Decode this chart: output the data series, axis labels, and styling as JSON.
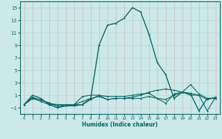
{
  "xlabel": "Humidex (Indice chaleur)",
  "ylabel": "",
  "background_color": "#cde8e8",
  "grid_color": "#b8d4d4",
  "line_color": "#006666",
  "xlim": [
    -0.5,
    23.5
  ],
  "ylim": [
    -2,
    16
  ],
  "xticks": [
    0,
    1,
    2,
    3,
    4,
    5,
    6,
    7,
    8,
    9,
    10,
    11,
    12,
    13,
    14,
    15,
    16,
    17,
    18,
    19,
    20,
    21,
    22,
    23
  ],
  "yticks": [
    -1,
    1,
    3,
    5,
    7,
    9,
    11,
    13,
    15
  ],
  "series1": [
    [
      0,
      -0.5
    ],
    [
      1,
      1.0
    ],
    [
      2,
      0.5
    ],
    [
      3,
      -0.5
    ],
    [
      4,
      -1.0
    ],
    [
      5,
      -0.7
    ],
    [
      6,
      -0.7
    ],
    [
      7,
      -0.5
    ],
    [
      8,
      0.5
    ],
    [
      9,
      9.0
    ],
    [
      10,
      12.2
    ],
    [
      11,
      12.5
    ],
    [
      12,
      13.3
    ],
    [
      13,
      15.0
    ],
    [
      14,
      14.3
    ],
    [
      15,
      10.7
    ],
    [
      16,
      6.2
    ],
    [
      17,
      4.3
    ],
    [
      18,
      0.5
    ],
    [
      19,
      1.5
    ],
    [
      20,
      1.2
    ],
    [
      21,
      -1.5
    ],
    [
      22,
      0.5
    ],
    [
      23,
      0.5
    ]
  ],
  "series2": [
    [
      0,
      -0.5
    ],
    [
      1,
      0.5
    ],
    [
      2,
      0.3
    ],
    [
      3,
      -0.3
    ],
    [
      4,
      -0.5
    ],
    [
      5,
      -0.7
    ],
    [
      6,
      -0.5
    ],
    [
      7,
      0.8
    ],
    [
      8,
      1.0
    ],
    [
      9,
      1.0
    ],
    [
      10,
      0.3
    ],
    [
      11,
      0.5
    ],
    [
      12,
      0.5
    ],
    [
      13,
      0.7
    ],
    [
      14,
      1.0
    ],
    [
      15,
      1.5
    ],
    [
      16,
      1.8
    ],
    [
      17,
      2.0
    ],
    [
      18,
      1.8
    ],
    [
      19,
      1.5
    ],
    [
      20,
      2.7
    ],
    [
      21,
      1.2
    ],
    [
      22,
      0.5
    ],
    [
      23,
      0.5
    ]
  ],
  "series3": [
    [
      0,
      -0.5
    ],
    [
      1,
      0.7
    ],
    [
      2,
      0.2
    ],
    [
      3,
      -0.2
    ],
    [
      4,
      -0.8
    ],
    [
      5,
      -0.7
    ],
    [
      6,
      -0.5
    ],
    [
      7,
      -0.5
    ],
    [
      8,
      0.3
    ],
    [
      9,
      1.0
    ],
    [
      10,
      0.8
    ],
    [
      11,
      0.8
    ],
    [
      12,
      0.8
    ],
    [
      13,
      1.0
    ],
    [
      14,
      1.2
    ],
    [
      15,
      1.3
    ],
    [
      16,
      0.5
    ],
    [
      17,
      -0.3
    ],
    [
      18,
      1.2
    ],
    [
      19,
      1.5
    ],
    [
      20,
      1.0
    ],
    [
      21,
      1.0
    ],
    [
      22,
      0.3
    ],
    [
      23,
      0.7
    ]
  ],
  "series4": [
    [
      0,
      -0.5
    ],
    [
      1,
      0.5
    ],
    [
      2,
      0.0
    ],
    [
      3,
      -0.5
    ],
    [
      4,
      -0.5
    ],
    [
      5,
      -0.5
    ],
    [
      6,
      -0.5
    ],
    [
      7,
      0.0
    ],
    [
      8,
      0.5
    ],
    [
      9,
      0.8
    ],
    [
      10,
      0.3
    ],
    [
      11,
      0.5
    ],
    [
      12,
      0.5
    ],
    [
      13,
      0.5
    ],
    [
      14,
      0.5
    ],
    [
      15,
      0.8
    ],
    [
      16,
      0.5
    ],
    [
      17,
      0.3
    ],
    [
      18,
      1.0
    ],
    [
      19,
      1.5
    ],
    [
      20,
      1.3
    ],
    [
      21,
      1.0
    ],
    [
      22,
      -1.5
    ],
    [
      23,
      0.7
    ]
  ]
}
